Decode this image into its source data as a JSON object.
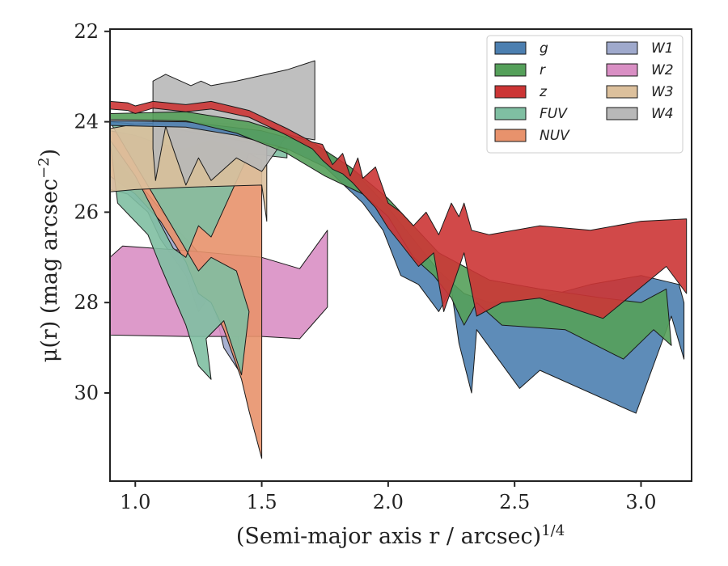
{
  "chart_data": {
    "type": "area",
    "xlabel": "(Semi-major axis r / arcsec)",
    "xlabel_exponent": "1/4",
    "ylabel": "μ(r) (mag arcsec",
    "ylabel_exponent": "−2",
    "ylabel_close": ")",
    "xlim": [
      0.9,
      3.2
    ],
    "ylim": [
      31.95,
      21.95
    ],
    "y_inverted": true,
    "grid": false,
    "legend_placement": "top-right",
    "legend_columns": 2,
    "x_ticks": [
      1.0,
      1.5,
      2.0,
      2.5,
      3.0
    ],
    "x_tick_labels": [
      "1.0",
      "1.5",
      "2.0",
      "2.5",
      "3.0"
    ],
    "y_ticks": [
      22,
      24,
      26,
      28,
      30
    ],
    "y_tick_labels": [
      "22",
      "24",
      "26",
      "28",
      "30"
    ],
    "series": [
      {
        "name": "g",
        "color": "#4c7fb0",
        "upper": [
          [
            0.9,
            23.98
          ],
          [
            1.2,
            24.0
          ],
          [
            1.5,
            24.2
          ],
          [
            1.7,
            24.5
          ],
          [
            1.85,
            25.0
          ],
          [
            2.0,
            25.9
          ],
          [
            2.1,
            26.6
          ],
          [
            2.2,
            27.3
          ],
          [
            2.3,
            27.8
          ],
          [
            2.4,
            28.0
          ],
          [
            2.6,
            27.9
          ],
          [
            2.8,
            27.6
          ],
          [
            3.0,
            27.4
          ],
          [
            3.15,
            27.6
          ],
          [
            3.17,
            28.0
          ]
        ],
        "lower": [
          [
            3.17,
            29.25
          ],
          [
            3.12,
            28.3
          ],
          [
            2.98,
            30.45
          ],
          [
            2.6,
            29.5
          ],
          [
            2.52,
            29.9
          ],
          [
            2.35,
            28.6
          ],
          [
            2.33,
            30.0
          ],
          [
            2.28,
            28.9
          ],
          [
            2.25,
            27.7
          ],
          [
            2.2,
            28.2
          ],
          [
            2.12,
            27.6
          ],
          [
            2.05,
            27.4
          ],
          [
            1.98,
            26.4
          ],
          [
            1.9,
            25.8
          ],
          [
            1.75,
            25.0
          ],
          [
            1.6,
            24.6
          ],
          [
            1.4,
            24.3
          ],
          [
            1.2,
            24.12
          ],
          [
            0.9,
            24.08
          ]
        ]
      },
      {
        "name": "r",
        "color": "#55a05a",
        "upper": [
          [
            0.9,
            23.82
          ],
          [
            1.2,
            23.78
          ],
          [
            1.45,
            24.0
          ],
          [
            1.7,
            24.45
          ],
          [
            1.85,
            25.0
          ],
          [
            2.0,
            25.7
          ],
          [
            2.1,
            26.3
          ],
          [
            2.2,
            26.9
          ],
          [
            2.3,
            27.2
          ],
          [
            2.4,
            27.5
          ],
          [
            2.6,
            27.7
          ],
          [
            2.85,
            27.9
          ],
          [
            3.0,
            28.0
          ],
          [
            3.1,
            27.7
          ],
          [
            3.12,
            28.95
          ]
        ],
        "lower": [
          [
            3.12,
            28.95
          ],
          [
            3.05,
            28.6
          ],
          [
            2.93,
            29.25
          ],
          [
            2.7,
            28.6
          ],
          [
            2.45,
            28.5
          ],
          [
            2.35,
            28.0
          ],
          [
            2.3,
            28.5
          ],
          [
            2.25,
            27.9
          ],
          [
            2.18,
            27.4
          ],
          [
            2.1,
            27.0
          ],
          [
            2.0,
            26.1
          ],
          [
            1.9,
            25.6
          ],
          [
            1.75,
            25.2
          ],
          [
            1.6,
            24.7
          ],
          [
            1.4,
            24.25
          ],
          [
            1.2,
            23.98
          ],
          [
            0.9,
            23.95
          ]
        ]
      },
      {
        "name": "z",
        "color": "#cc3535",
        "upper": [
          [
            0.9,
            23.55
          ],
          [
            0.97,
            23.58
          ],
          [
            1.0,
            23.65
          ],
          [
            1.07,
            23.55
          ],
          [
            1.2,
            23.62
          ],
          [
            1.3,
            23.55
          ],
          [
            1.45,
            23.75
          ],
          [
            1.6,
            24.15
          ],
          [
            1.7,
            24.45
          ],
          [
            1.74,
            24.5
          ],
          [
            1.78,
            24.95
          ],
          [
            1.82,
            24.7
          ],
          [
            1.85,
            25.2
          ],
          [
            1.88,
            24.8
          ],
          [
            1.9,
            25.25
          ],
          [
            1.95,
            25.0
          ],
          [
            2.0,
            25.8
          ],
          [
            2.05,
            26.0
          ],
          [
            2.1,
            26.3
          ],
          [
            2.15,
            26.0
          ],
          [
            2.2,
            26.5
          ],
          [
            2.25,
            25.8
          ],
          [
            2.28,
            26.1
          ],
          [
            2.3,
            25.8
          ],
          [
            2.33,
            26.4
          ],
          [
            2.4,
            26.5
          ],
          [
            2.6,
            26.3
          ],
          [
            2.8,
            26.4
          ],
          [
            3.0,
            26.2
          ],
          [
            3.18,
            26.15
          ]
        ],
        "lower": [
          [
            3.18,
            27.8
          ],
          [
            3.1,
            27.2
          ],
          [
            2.85,
            28.35
          ],
          [
            2.6,
            27.9
          ],
          [
            2.45,
            28.0
          ],
          [
            2.35,
            28.3
          ],
          [
            2.3,
            26.9
          ],
          [
            2.22,
            28.2
          ],
          [
            2.18,
            26.9
          ],
          [
            2.12,
            27.2
          ],
          [
            2.05,
            26.7
          ],
          [
            2.0,
            26.35
          ],
          [
            1.95,
            25.9
          ],
          [
            1.9,
            25.6
          ],
          [
            1.86,
            25.35
          ],
          [
            1.82,
            25.15
          ],
          [
            1.78,
            25.05
          ],
          [
            1.74,
            24.85
          ],
          [
            1.7,
            24.6
          ],
          [
            1.6,
            24.3
          ],
          [
            1.45,
            23.9
          ],
          [
            1.3,
            23.72
          ],
          [
            1.2,
            23.78
          ],
          [
            1.07,
            23.7
          ],
          [
            1.0,
            23.82
          ],
          [
            0.97,
            23.75
          ],
          [
            0.9,
            23.72
          ]
        ]
      },
      {
        "name": "FUV",
        "color": "#7fbfa2",
        "upper": [
          [
            0.9,
            24.0
          ],
          [
            1.1,
            24.1
          ],
          [
            1.3,
            24.3
          ],
          [
            1.5,
            24.5
          ],
          [
            1.6,
            24.6
          ]
        ],
        "lower": [
          [
            1.6,
            24.8
          ],
          [
            1.45,
            24.7
          ],
          [
            1.3,
            26.55
          ],
          [
            1.25,
            26.3
          ],
          [
            1.2,
            27.0
          ],
          [
            1.15,
            26.8
          ],
          [
            1.0,
            25.2
          ],
          [
            0.9,
            24.4
          ],
          [
            0.93,
            25.8
          ],
          [
            1.05,
            26.5
          ],
          [
            1.1,
            27.2
          ],
          [
            1.2,
            28.5
          ],
          [
            1.25,
            29.4
          ],
          [
            1.3,
            29.7
          ],
          [
            1.28,
            28.8
          ],
          [
            1.35,
            28.4
          ],
          [
            1.42,
            29.6
          ],
          [
            1.45,
            28.2
          ],
          [
            1.4,
            27.3
          ],
          [
            1.3,
            27.0
          ],
          [
            1.25,
            27.3
          ]
        ]
      },
      {
        "name": "NUV",
        "color": "#e8926c",
        "upper": [
          [
            0.9,
            24.2
          ],
          [
            1.0,
            24.3
          ],
          [
            1.1,
            24.5
          ],
          [
            1.2,
            24.6
          ],
          [
            1.3,
            24.4
          ],
          [
            1.45,
            24.7
          ],
          [
            1.5,
            24.85
          ],
          [
            1.5,
            29.35
          ],
          [
            1.5,
            31.45
          ],
          [
            1.45,
            30.4
          ],
          [
            1.42,
            29.7
          ],
          [
            1.35,
            28.6
          ],
          [
            1.3,
            28.0
          ],
          [
            1.25,
            27.8
          ],
          [
            1.2,
            27.1
          ],
          [
            1.1,
            26.2
          ],
          [
            1.0,
            25.6
          ],
          [
            0.9,
            25.2
          ]
        ],
        "lower": []
      },
      {
        "name": "W1",
        "color": "#9fa9cc",
        "upper": [
          [
            0.9,
            25.5
          ],
          [
            0.97,
            25.6
          ],
          [
            1.05,
            26.0
          ],
          [
            1.1,
            26.6
          ],
          [
            1.2,
            27.4
          ],
          [
            1.25,
            28.2
          ],
          [
            1.3,
            27.8
          ],
          [
            1.35,
            29.0
          ],
          [
            1.42,
            29.6
          ],
          [
            1.4,
            28.2
          ],
          [
            1.35,
            27.6
          ],
          [
            1.28,
            27.1
          ],
          [
            1.22,
            26.7
          ],
          [
            1.15,
            26.3
          ],
          [
            1.05,
            25.6
          ],
          [
            0.95,
            25.0
          ],
          [
            0.9,
            24.8
          ]
        ],
        "lower": []
      },
      {
        "name": "W2",
        "color": "#d98fc4",
        "upper": [
          [
            0.9,
            27.0
          ],
          [
            0.95,
            26.75
          ],
          [
            1.2,
            26.85
          ],
          [
            1.5,
            27.0
          ],
          [
            1.65,
            27.25
          ],
          [
            1.76,
            26.4
          ]
        ],
        "lower": [
          [
            1.76,
            28.1
          ],
          [
            1.65,
            28.8
          ],
          [
            1.5,
            28.75
          ],
          [
            1.2,
            28.75
          ],
          [
            0.9,
            28.72
          ]
        ]
      },
      {
        "name": "W3",
        "color": "#dcc09c",
        "upper": [
          [
            0.9,
            24.15
          ],
          [
            1.0,
            24.05
          ],
          [
            1.2,
            24.0
          ],
          [
            1.4,
            24.05
          ],
          [
            1.52,
            24.15
          ]
        ],
        "lower": [
          [
            1.52,
            26.2
          ],
          [
            1.5,
            25.4
          ],
          [
            1.2,
            25.45
          ],
          [
            1.0,
            25.5
          ],
          [
            0.9,
            25.55
          ]
        ]
      },
      {
        "name": "W4",
        "color": "#b8b8b8",
        "upper": [
          [
            1.07,
            23.1
          ],
          [
            1.12,
            22.95
          ],
          [
            1.18,
            23.1
          ],
          [
            1.22,
            23.2
          ],
          [
            1.26,
            23.1
          ],
          [
            1.3,
            23.2
          ],
          [
            1.4,
            23.1
          ],
          [
            1.6,
            22.85
          ],
          [
            1.71,
            22.65
          ]
        ],
        "lower": [
          [
            1.71,
            24.4
          ],
          [
            1.6,
            24.3
          ],
          [
            1.5,
            25.1
          ],
          [
            1.4,
            24.8
          ],
          [
            1.3,
            25.3
          ],
          [
            1.25,
            24.8
          ],
          [
            1.2,
            25.4
          ],
          [
            1.15,
            24.6
          ],
          [
            1.12,
            24.1
          ],
          [
            1.08,
            25.3
          ],
          [
            1.07,
            24.6
          ]
        ]
      }
    ]
  }
}
